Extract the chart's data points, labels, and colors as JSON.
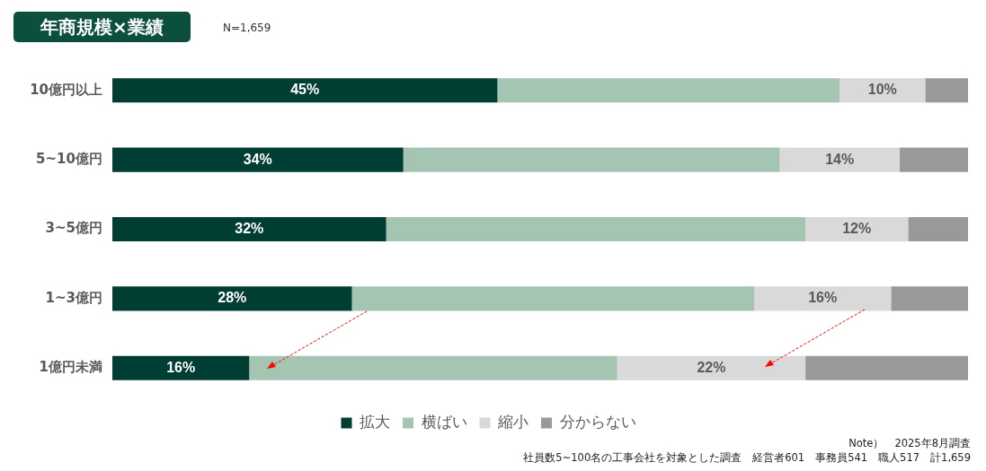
{
  "chart_data": {
    "type": "bar",
    "orientation": "horizontal",
    "stacked": true,
    "title": "年商規模×業績",
    "subtitle": "N=1,659",
    "categories": [
      "10億円以上",
      "5~10億円",
      "3~5億円",
      "1~3億円",
      "1億円未満"
    ],
    "series": [
      {
        "name": "拡大",
        "color": "#003d33",
        "values": [
          45,
          34,
          32,
          28,
          16
        ],
        "value_labels": [
          "45%",
          "34%",
          "32%",
          "28%",
          "16%"
        ]
      },
      {
        "name": "横ばい",
        "color": "#a3c5b1",
        "values": [
          40,
          44,
          49,
          47,
          43
        ]
      },
      {
        "name": "縮小",
        "color": "#d9d9d9",
        "values": [
          10,
          14,
          12,
          16,
          22
        ],
        "value_labels": [
          "10%",
          "14%",
          "12%",
          "16%",
          "22%"
        ]
      },
      {
        "name": "分からない",
        "color": "#999999",
        "values": [
          5,
          8,
          7,
          9,
          19
        ]
      }
    ],
    "xlim": [
      0,
      100
    ],
    "tick_labels": "y",
    "legend": "bottom",
    "annotations": [
      "Note）　2025年8月調査",
      "社員数5~100名の工事会社を対象とした調査　経営者601　事務員541　職人517　計1,659"
    ]
  }
}
